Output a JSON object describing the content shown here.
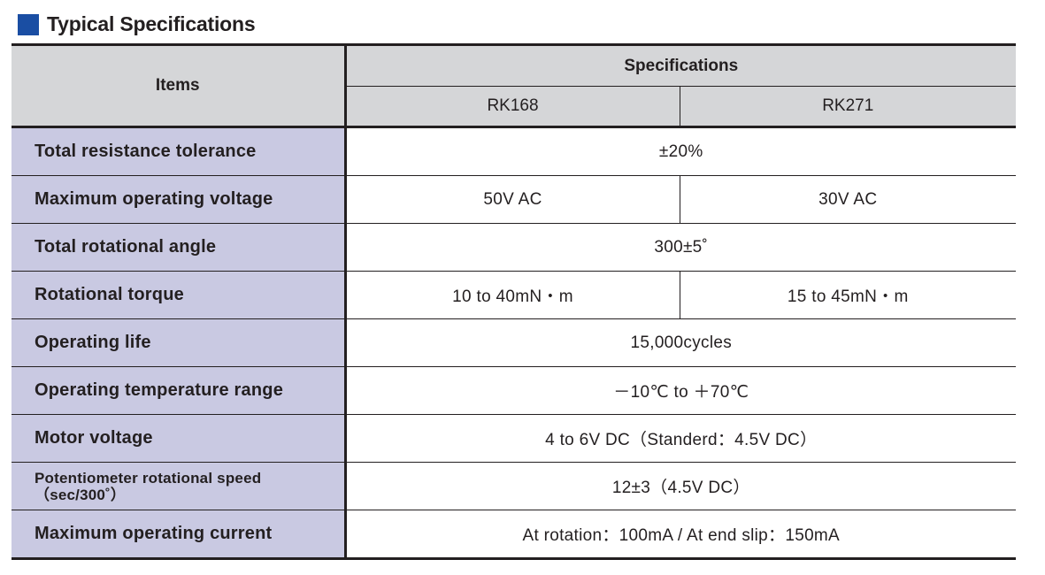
{
  "title": "Typical Specifications",
  "colors": {
    "title_square": "#1a4ea3",
    "header_bg": "#d5d6d8",
    "item_bg": "#c9c9e2"
  },
  "header": {
    "items": "Items",
    "specifications": "Specifications",
    "models": [
      "RK168",
      "RK271"
    ]
  },
  "rows": [
    {
      "item": "Total resistance tolerance",
      "value": "±20%"
    },
    {
      "item": "Maximum operating voltage",
      "rk168": "50V AC",
      "rk271": "30V AC"
    },
    {
      "item": "Total rotational angle",
      "value": "300±5˚"
    },
    {
      "item": "Rotational torque",
      "rk168": "10 to 40mN・m",
      "rk271": "15 to 45mN・m"
    },
    {
      "item": "Operating life",
      "value": "15,000cycles"
    },
    {
      "item": "Operating temperature range",
      "value": "－10℃ to ＋70℃"
    },
    {
      "item": "Motor voltage",
      "value": "4 to 6V DC（Standerd：4.5V DC）"
    },
    {
      "item": "Potentiometer rotational speed",
      "item_note": "（sec/300˚）",
      "value": "12±3（4.5V DC）"
    },
    {
      "item": "Maximum operating current",
      "value": "At rotation：100mA / At end slip：150mA"
    }
  ]
}
